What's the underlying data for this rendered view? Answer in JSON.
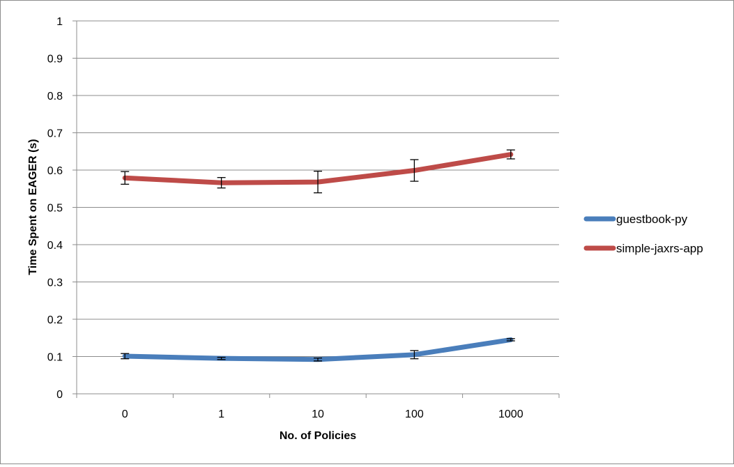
{
  "chart_data": {
    "type": "line",
    "title": "",
    "xlabel": "No. of Policies",
    "ylabel": "Time Spent on EAGER (s)",
    "categories": [
      "0",
      "1",
      "10",
      "100",
      "1000"
    ],
    "ylim": [
      0,
      1
    ],
    "yticks": [
      "0",
      "0.1",
      "0.2",
      "0.3",
      "0.4",
      "0.5",
      "0.6",
      "0.7",
      "0.8",
      "0.9",
      "1"
    ],
    "grid": true,
    "legend_position": "right",
    "series": [
      {
        "name": "guestbook-py",
        "color": "#4a7ebb",
        "values": [
          0.101,
          0.095,
          0.092,
          0.105,
          0.145
        ],
        "error": [
          0.007,
          0.003,
          0.004,
          0.011,
          0.003
        ]
      },
      {
        "name": "simple-jaxrs-app",
        "color": "#be4b48",
        "values": [
          0.579,
          0.566,
          0.568,
          0.599,
          0.642
        ],
        "error": [
          0.017,
          0.014,
          0.029,
          0.029,
          0.012
        ]
      }
    ]
  }
}
